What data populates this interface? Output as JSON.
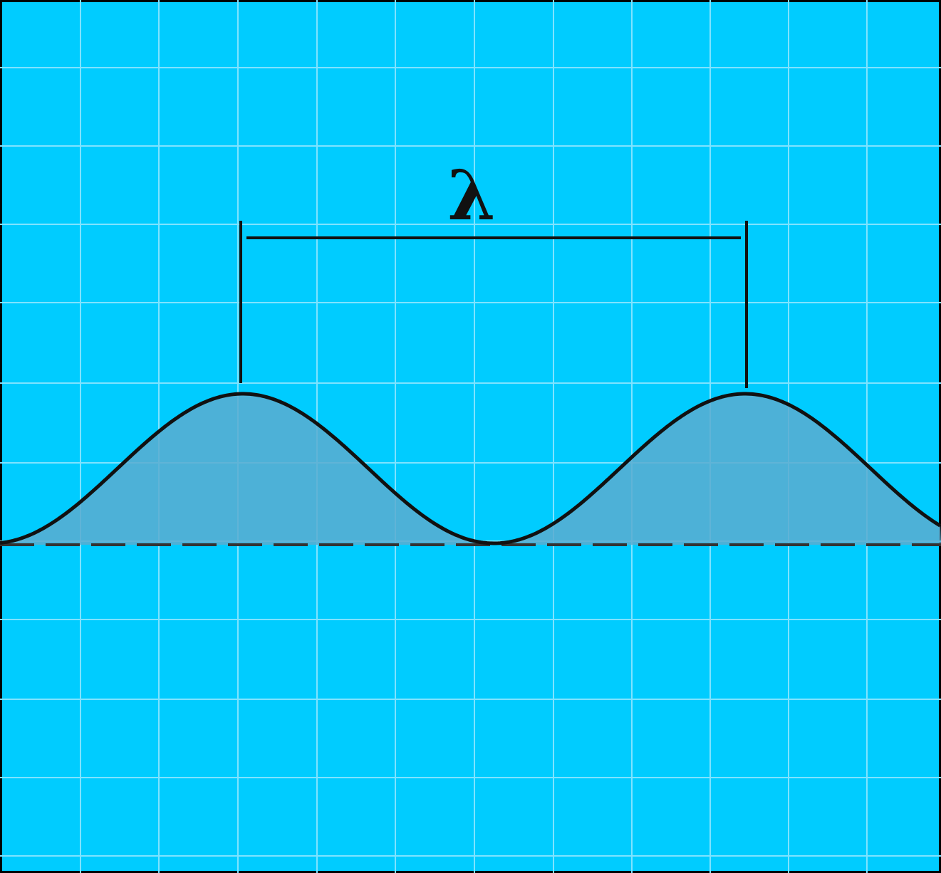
{
  "diagram": {
    "wavelength_label": "λ",
    "colors": {
      "background": "#00ccff",
      "grid": "#7fe3ff",
      "wave_fill": "#5aacd0",
      "wave_stroke": "#111111",
      "baseline": "#333333",
      "frame": "#000000"
    },
    "icons": [
      "wave-curve-icon",
      "wavelength-bracket-icon"
    ]
  }
}
